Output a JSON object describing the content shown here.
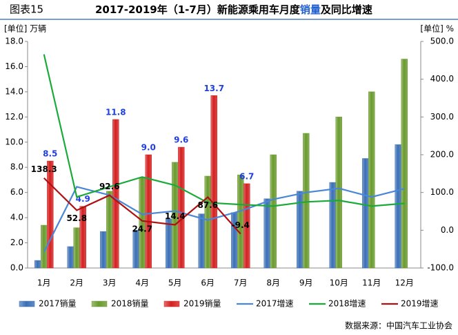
{
  "chart_data": {
    "type": "bar-line",
    "title": [
      "图表15",
      "2017-2019年（1-7月）新能源乘用车月度",
      "销量",
      "及同比增速"
    ],
    "y_label": "[单位] 万辆",
    "y2_label": "[单位] %",
    "source": "数据来源：中国汽车工业协会",
    "categories": [
      "1月",
      "2月",
      "3月",
      "4月",
      "5月",
      "6月",
      "7月",
      "8月",
      "9月",
      "10月",
      "11月",
      "12月"
    ],
    "ylim": [
      0,
      18
    ],
    "yticks": [
      {
        "value": 0,
        "label": "0.0"
      },
      {
        "value": 2,
        "label": "2.0"
      },
      {
        "value": 4,
        "label": "4.0"
      },
      {
        "value": 6,
        "label": "6.0"
      },
      {
        "value": 8,
        "label": "8.0"
      },
      {
        "value": 10,
        "label": "10.0"
      },
      {
        "value": 12,
        "label": "12.0"
      },
      {
        "value": 14,
        "label": "14.0"
      },
      {
        "value": 16,
        "label": "16.0"
      },
      {
        "value": 18,
        "label": "18.0"
      }
    ],
    "y2lim": [
      -100,
      500
    ],
    "y2ticks": [
      {
        "value": -100,
        "label": "-100.0"
      },
      {
        "value": 0,
        "label": "0.0"
      },
      {
        "value": 100,
        "label": "100.0"
      },
      {
        "value": 200,
        "label": "200.0"
      },
      {
        "value": 300,
        "label": "300.0"
      },
      {
        "value": 400,
        "label": "400.0"
      },
      {
        "value": 500,
        "label": "500.0"
      }
    ],
    "series": [
      {
        "name": "2017销量",
        "type": "bar",
        "color": "#3a6fb5",
        "values": [
          0.6,
          1.7,
          2.9,
          3.0,
          3.9,
          4.3,
          4.4,
          5.5,
          6.1,
          6.8,
          8.7,
          9.8
        ]
      },
      {
        "name": "2018销量",
        "type": "bar",
        "color": "#6a9a2e",
        "values": [
          3.4,
          3.2,
          6.1,
          7.2,
          8.4,
          7.3,
          7.4,
          9.0,
          10.7,
          12.0,
          14.0,
          16.6
        ]
      },
      {
        "name": "2019销量",
        "type": "bar",
        "color": "#d42020",
        "values": [
          8.5,
          4.9,
          11.8,
          9.0,
          9.6,
          13.7,
          6.7,
          null,
          null,
          null,
          null,
          null
        ],
        "value_labels": [
          "8.5",
          "4.9",
          "11.8",
          "9.0",
          "9.6",
          "13.7",
          "6.7",
          null,
          null,
          null,
          null,
          null
        ]
      },
      {
        "name": "2017增速",
        "type": "line",
        "axis": "y2",
        "color": "#4a86d8",
        "values": [
          -58,
          115,
          93,
          42,
          51,
          27,
          51,
          82,
          100,
          111,
          88,
          110
        ]
      },
      {
        "name": "2018增速",
        "type": "line",
        "axis": "y2",
        "color": "#1aaa3a",
        "values": [
          466,
          88,
          115,
          141,
          119,
          73,
          68,
          64,
          75,
          79,
          64,
          71
        ]
      },
      {
        "name": "2019增速",
        "type": "line",
        "axis": "y2",
        "color": "#b01010",
        "values": [
          138.3,
          52.8,
          92.6,
          24.7,
          14.4,
          87.6,
          -9.4,
          null,
          null,
          null,
          null,
          null
        ],
        "labeled": true
      }
    ]
  }
}
